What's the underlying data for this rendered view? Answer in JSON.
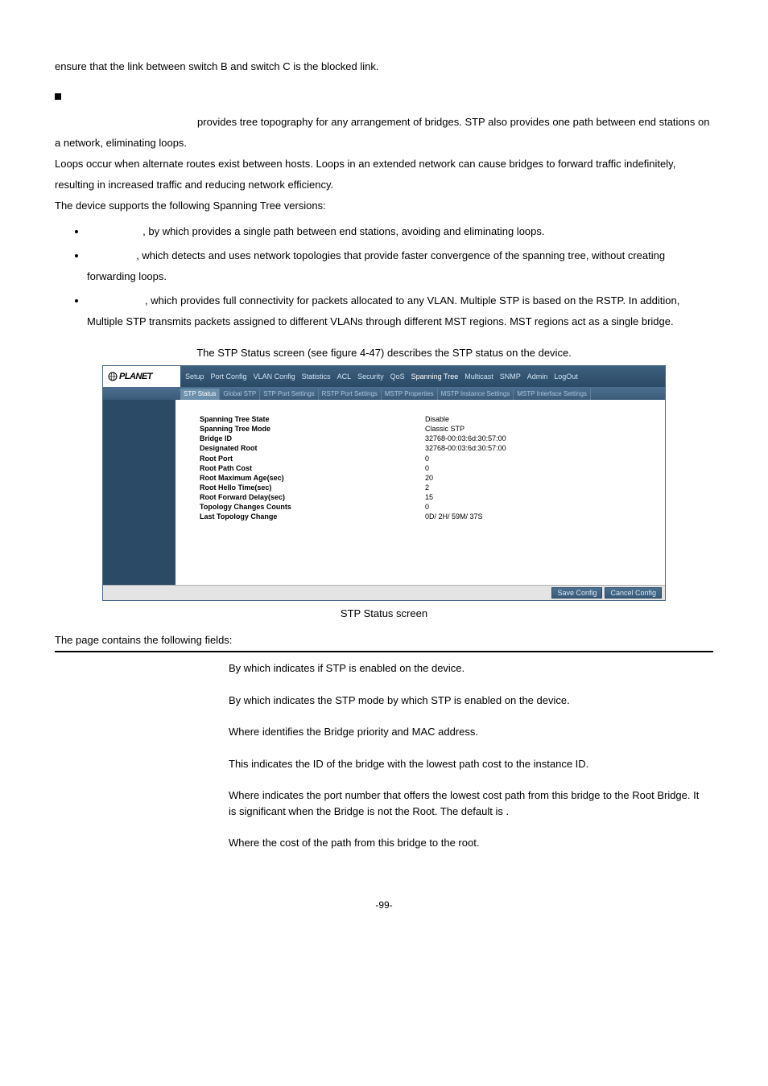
{
  "intro_line": "ensure that the link between switch B and switch C is the blocked link.",
  "para1_mid": " provides tree topography for any arrangement of bridges. STP also provides one path between end stations on a network, eliminating loops.",
  "para2": "Loops occur when alternate routes exist between hosts. Loops in an extended network can cause bridges to forward traffic indefinitely, resulting in increased traffic and reducing network efficiency.",
  "para3": "The device supports the following Spanning Tree versions:",
  "bullets": [
    ", by which provides a single path between end stations, avoiding and eliminating loops.",
    ", which detects and uses network topologies that provide faster convergence of the spanning tree, without creating forwarding loops.",
    ", which provides full connectivity for packets allocated to any VLAN. Multiple STP is based on the RSTP. In addition, Multiple STP transmits packets assigned to different VLANs through different MST regions. MST regions act as a single bridge."
  ],
  "screen_intro": "The STP Status screen (see figure 4-47) describes the STP status on the device.",
  "shot": {
    "logo": "PLANET",
    "menu": [
      "Setup",
      "Port Config",
      "VLAN Config",
      "Statistics",
      "ACL",
      "Security",
      "QoS",
      "Spanning Tree",
      "Multicast",
      "SNMP",
      "Admin",
      "LogOut"
    ],
    "menu_highlight": "Spanning Tree",
    "submenu": [
      "STP Status",
      "Global STP",
      "STP Port Settings",
      "RSTP Port Settings",
      "MSTP Properties",
      "MSTP Instance Settings",
      "MSTP Interface Settings"
    ],
    "submenu_active": "STP Status",
    "rows": [
      {
        "label": "Spanning Tree State",
        "value": "Disable"
      },
      {
        "label": "Spanning Tree Mode",
        "value": "Classic STP"
      },
      {
        "label": "Bridge ID",
        "value": "32768-00:03:6d:30:57:00"
      },
      {
        "label": "Designated Root",
        "value": "32768-00:03:6d:30:57:00"
      },
      {
        "label": "Root Port",
        "value": "0"
      },
      {
        "label": "Root Path Cost",
        "value": "0"
      },
      {
        "label": "Root Maximum Age(sec)",
        "value": "20"
      },
      {
        "label": "Root Hello Time(sec)",
        "value": "2"
      },
      {
        "label": "Root Forward Delay(sec)",
        "value": "15"
      },
      {
        "label": "Topology Changes Counts",
        "value": "0"
      },
      {
        "label": "Last Topology Change",
        "value": "0D/ 2H/ 59M/ 37S"
      }
    ],
    "btn_save": "Save Config",
    "btn_cancel": "Cancel Config"
  },
  "caption": "STP Status screen",
  "fields_intro": "The page contains the following fields:",
  "fields": [
    {
      "desc": "By which indicates if STP is enabled on the device."
    },
    {
      "desc": "By which indicates the STP mode by which STP is enabled on the device."
    },
    {
      "desc": "Where identifies the Bridge priority and MAC address."
    },
    {
      "desc": "This indicates the ID of the bridge with the lowest path cost to the instance ID."
    },
    {
      "desc": "Where indicates the port number that offers the lowest cost path from this bridge to the Root Bridge. It is significant when the Bridge is not the Root. The default is   ."
    },
    {
      "desc": "Where the cost of the path from this bridge to the root."
    }
  ],
  "page_num": "-99-"
}
